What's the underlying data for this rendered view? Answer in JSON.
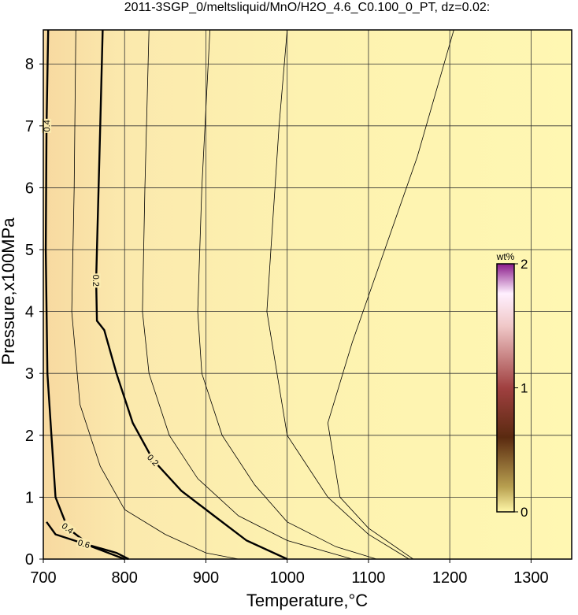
{
  "chart_data": {
    "type": "contour",
    "title": "2011-3SGP_0/meltsliquid/MnO/H2O_4.6_C0.100_0_PT, dz=0.02:",
    "x_label": "Temperature,°C",
    "y_label": "Pressure,x100MPa",
    "xlim": [
      700,
      1350
    ],
    "ylim": [
      0,
      8.55
    ],
    "xticks": [
      700,
      800,
      900,
      1000,
      1100,
      1200,
      1300
    ],
    "yticks": [
      0,
      1,
      2,
      3,
      4,
      5,
      6,
      7,
      8
    ],
    "grid": true,
    "contours": [
      {
        "level": 0.2,
        "x": [
          773,
          770,
          766,
          765,
          766,
          775,
          790,
          810,
          835,
          870,
          910,
          950,
          1000
        ],
        "y": [
          8.55,
          7,
          5,
          4.5,
          3.85,
          3.7,
          3,
          2.2,
          1.6,
          1.1,
          0.7,
          0.3,
          0
        ]
      },
      {
        "level": 0.4,
        "x": [
          706,
          704,
          703,
          705,
          710,
          715,
          730,
          760,
          800
        ],
        "y": [
          8.55,
          7,
          5,
          3,
          2,
          1,
          0.5,
          0.2,
          0
        ]
      },
      {
        "level": 0.6,
        "x": [
          704,
          715,
          750,
          790,
          805
        ],
        "y": [
          0.6,
          0.4,
          0.25,
          0.1,
          0
        ]
      },
      {
        "x": [
          740,
          738,
          735,
          745,
          770,
          800,
          850,
          900,
          940
        ],
        "y": [
          8.55,
          6,
          4,
          2.5,
          1.5,
          0.8,
          0.4,
          0.1,
          0
        ]
      },
      {
        "x": [
          830,
          825,
          822,
          830,
          855,
          890,
          940,
          1000,
          1080
        ],
        "y": [
          8.55,
          6,
          4,
          3,
          2,
          1.3,
          0.7,
          0.3,
          0
        ]
      },
      {
        "x": [
          905,
          895,
          890,
          895,
          920,
          960,
          1000,
          1060,
          1110
        ],
        "y": [
          8.55,
          6,
          4,
          3,
          2,
          1.2,
          0.6,
          0.2,
          0
        ]
      },
      {
        "x": [
          1000,
          990,
          980,
          975,
          1000,
          1050,
          1100,
          1150
        ],
        "y": [
          8.55,
          7,
          5,
          4,
          2,
          1,
          0.4,
          0
        ]
      },
      {
        "x": [
          1205,
          1160,
          1120,
          1080,
          1050,
          1065,
          1100,
          1155
        ],
        "y": [
          8.55,
          6.5,
          5,
          3.5,
          2.2,
          1,
          0.5,
          0
        ]
      }
    ],
    "colorbar": {
      "label": "wt%",
      "lim": [
        0,
        2
      ],
      "ticks": [
        0,
        1,
        2
      ]
    }
  }
}
